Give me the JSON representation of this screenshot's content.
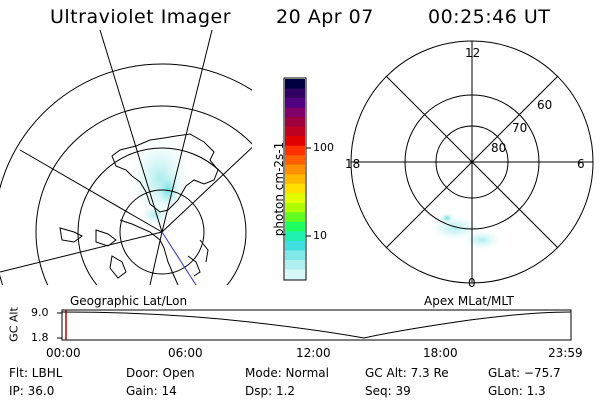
{
  "header": {
    "instrument": "Ultraviolet Imager",
    "date": "20 Apr 07",
    "time": "00:25:46 UT"
  },
  "colorbar": {
    "unit_label": "photon cm-2s-1",
    "tick_labels": [
      "100",
      "10"
    ],
    "colors": [
      "#000040",
      "#300060",
      "#500080",
      "#80006a",
      "#a00040",
      "#c00020",
      "#e00000",
      "#ff3000",
      "#ff6000",
      "#ff9000",
      "#ffb800",
      "#ffe000",
      "#e0ff00",
      "#b0ff00",
      "#60ff20",
      "#20ff60",
      "#20f0b0",
      "#40e0e0",
      "#80e8e8",
      "#b0f0f0",
      "#d8f8f8"
    ]
  },
  "left_panel": {
    "label": "Geographic Lat/Lon"
  },
  "right_panel": {
    "label": "Apex MLat/MLT",
    "mlt_labels": {
      "top": "12",
      "left": "18",
      "right": "6",
      "bottom": "0"
    },
    "mlat_labels": [
      "60",
      "70",
      "80"
    ]
  },
  "timeline": {
    "y_axis_label": "GC Alt",
    "y_ticks": [
      "9.0",
      "1.8"
    ],
    "x_ticks": [
      "00:00",
      "06:00",
      "12:00",
      "18:00",
      "23:59"
    ]
  },
  "info": {
    "flt": "Flt: LBHL",
    "ip": "IP: 36.0",
    "door": "Door: Open",
    "gain": "Gain: 14",
    "mode": "Mode: Normal",
    "dsp": "Dsp:     1.2",
    "gcalt": "GC Alt: 7.3 Re",
    "seq": "Seq: 39",
    "glat": "GLat:  −75.7",
    "glon": "GLon:     1.3"
  }
}
